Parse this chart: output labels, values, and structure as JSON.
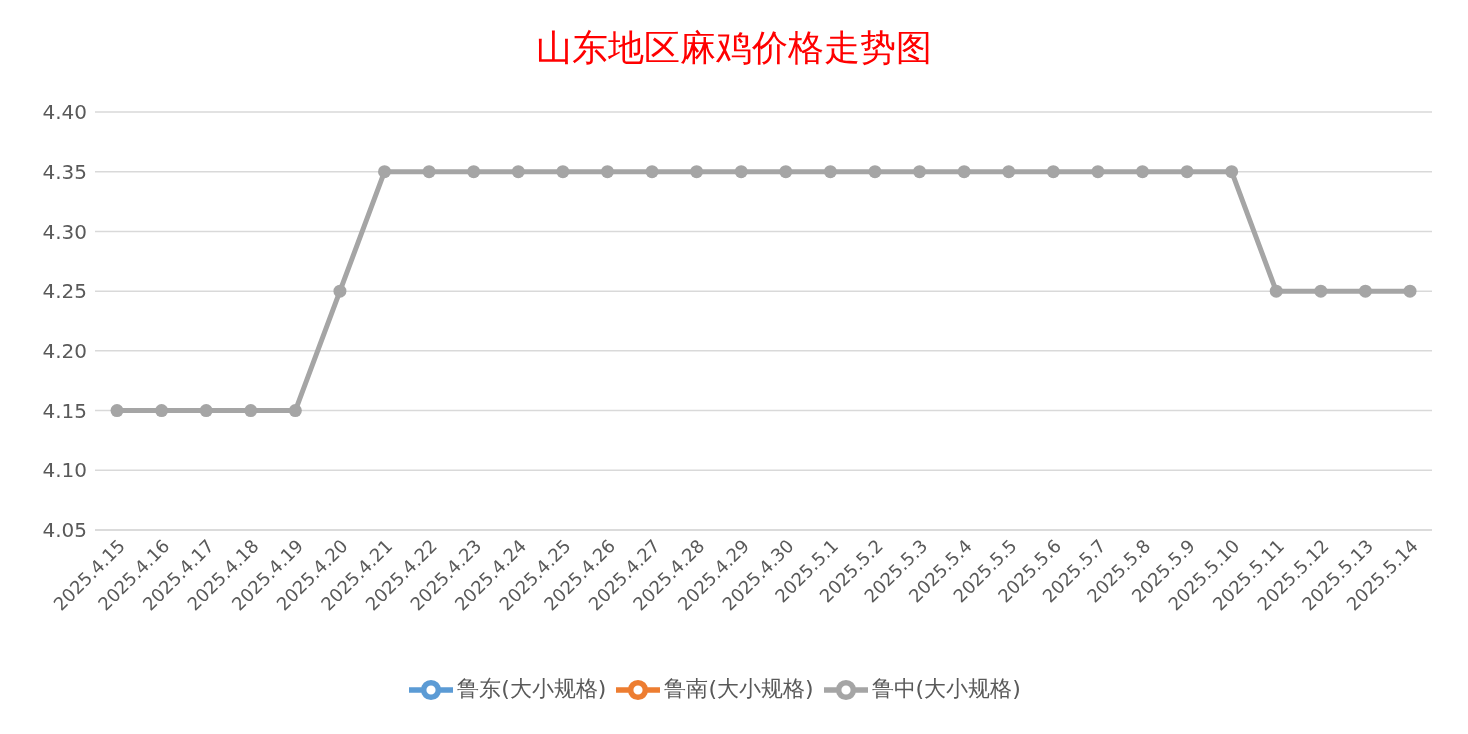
{
  "chart_data": {
    "type": "line",
    "title": "山东地区麻鸡价格走势图",
    "categories": [
      "2025.4.15",
      "2025.4.16",
      "2025.4.17",
      "2025.4.18",
      "2025.4.19",
      "2025.4.20",
      "2025.4.21",
      "2025.4.22",
      "2025.4.23",
      "2025.4.24",
      "2025.4.25",
      "2025.4.26",
      "2025.4.27",
      "2025.4.28",
      "2025.4.29",
      "2025.4.30",
      "2025.5.1",
      "2025.5.2",
      "2025.5.3",
      "2025.5.4",
      "2025.5.5",
      "2025.5.6",
      "2025.5.7",
      "2025.5.8",
      "2025.5.9",
      "2025.5.10",
      "2025.5.11",
      "2025.5.12",
      "2025.5.13",
      "2025.5.14"
    ],
    "series": [
      {
        "name": "鲁东(大小规格)",
        "color": "#5b9bd5",
        "values": [
          null,
          null,
          null,
          null,
          null,
          null,
          null,
          null,
          null,
          null,
          null,
          null,
          null,
          null,
          null,
          null,
          null,
          null,
          null,
          null,
          null,
          null,
          null,
          null,
          null,
          null,
          null,
          null,
          null,
          null
        ]
      },
      {
        "name": "鲁南(大小规格)",
        "color": "#ed7d31",
        "values": [
          null,
          null,
          null,
          null,
          null,
          null,
          null,
          null,
          null,
          null,
          null,
          null,
          null,
          null,
          null,
          null,
          null,
          null,
          null,
          null,
          null,
          null,
          null,
          null,
          null,
          null,
          null,
          null,
          null,
          null
        ]
      },
      {
        "name": "鲁中(大小规格)",
        "color": "#a5a5a5",
        "values": [
          4.15,
          4.15,
          4.15,
          4.15,
          4.15,
          4.25,
          4.35,
          4.35,
          4.35,
          4.35,
          4.35,
          4.35,
          4.35,
          4.35,
          4.35,
          4.35,
          4.35,
          4.35,
          4.35,
          4.35,
          4.35,
          4.35,
          4.35,
          4.35,
          4.35,
          4.35,
          4.25,
          4.25,
          4.25,
          4.25
        ]
      }
    ],
    "ylim": [
      4.05,
      4.4
    ],
    "yticks": [
      4.05,
      {
        "value": 4.1,
        "label": "4.10"
      },
      4.15,
      {
        "value": 4.2,
        "label": "4.20"
      },
      4.25,
      {
        "value": 4.3,
        "label": "4.30"
      },
      4.35,
      {
        "value": 4.4,
        "label": "4.40"
      }
    ],
    "grid": "y",
    "legend": "bottom",
    "marker": "circle",
    "line_style": "solid"
  }
}
